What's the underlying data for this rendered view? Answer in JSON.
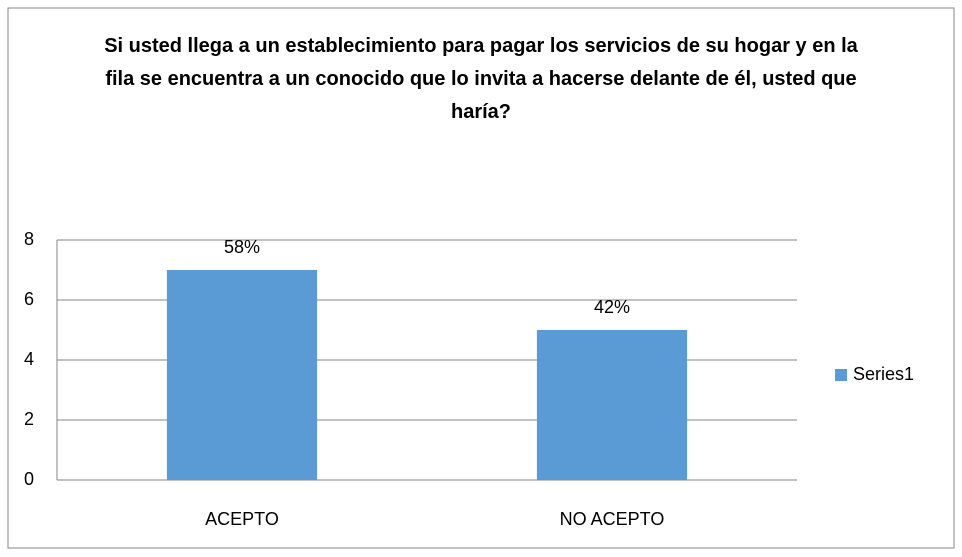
{
  "chart_data": {
    "type": "bar",
    "title": "Si usted llega a un establecimiento para pagar los servicios de su hogar y en la fila se encuentra a un conocido que lo invita a hacerse delante de él, usted que haría?",
    "categories": [
      "ACEPTO",
      "NO ACEPTO"
    ],
    "series": [
      {
        "name": "Series1",
        "color": "#5b9bd5",
        "values": [
          7,
          5
        ]
      }
    ],
    "data_labels": [
      "58%",
      "42%"
    ],
    "ylim": [
      0,
      8
    ],
    "yticks": [
      0,
      2,
      4,
      6,
      8
    ],
    "grid": true,
    "legend": "right"
  }
}
